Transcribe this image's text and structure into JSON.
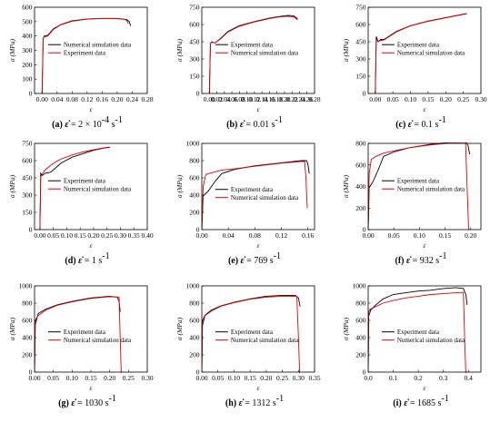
{
  "chart_data": [
    {
      "type": "line",
      "panel": "(a)",
      "strain_rate": "= 2 × 10",
      "rate_sup": "-4",
      "rate_unit": " s",
      "rate_unit_sup": "-1",
      "ylabel": "σ (MPa)",
      "xlabel": "ε",
      "xlim": [
        -0.02,
        0.28
      ],
      "ylim": [
        0,
        600
      ],
      "xticks": [
        0,
        0.04,
        0.08,
        0.12,
        0.16,
        0.2,
        0.24,
        0.28
      ],
      "xticklabels": [
        "0.00",
        "0.04",
        "0.08",
        "0.12",
        "0.16",
        "0.20",
        "0.24",
        "0.28"
      ],
      "yticks": [
        0,
        100,
        200,
        300,
        400,
        500,
        600
      ],
      "yticklabels": [
        "0",
        "100",
        "200",
        "300",
        "400",
        "500",
        "600"
      ],
      "legend_position": "center",
      "series": [
        {
          "name": "Numerical simulation data",
          "color": "#000000",
          "x": [
            0,
            0.003,
            0.006,
            0.015,
            0.03,
            0.05,
            0.08,
            0.12,
            0.16,
            0.2,
            0.225,
            0.232,
            0.236
          ],
          "y": [
            0,
            380,
            400,
            405,
            450,
            480,
            505,
            518,
            522,
            522,
            515,
            500,
            470
          ]
        },
        {
          "name": "Experiment data",
          "color": "#e00000",
          "x": [
            0,
            0.003,
            0.006,
            0.015,
            0.03,
            0.05,
            0.08,
            0.12,
            0.16,
            0.2,
            0.222,
            0.226,
            0.23
          ],
          "y": [
            0,
            385,
            395,
            400,
            445,
            478,
            503,
            517,
            522,
            521,
            514,
            505,
            485
          ]
        }
      ]
    },
    {
      "type": "line",
      "panel": "(b)",
      "strain_rate": "= 0.01",
      "rate_sup": "",
      "rate_unit": " s",
      "rate_unit_sup": "-1",
      "ylabel": "σ (MPa)",
      "xlabel": "ε",
      "xlim": [
        -0.02,
        0.28
      ],
      "ylim": [
        0,
        750
      ],
      "xticks": [
        0,
        0.02,
        0.04,
        0.06,
        0.08,
        0.1,
        0.12,
        0.14,
        0.16,
        0.18,
        0.2,
        0.22,
        0.24,
        0.26,
        0.28
      ],
      "xticklabels": [
        "0.00",
        "0.02",
        "0.04",
        "0.06",
        "0.08",
        "0.10",
        "0.12",
        "0.14",
        "0.16",
        "0.18",
        "0.20",
        "0.22",
        "0.24",
        "0.26",
        "0.28"
      ],
      "yticks": [
        0,
        150,
        300,
        450,
        600,
        750
      ],
      "yticklabels": [
        "0",
        "150",
        "300",
        "450",
        "600",
        "750"
      ],
      "legend_position": "center",
      "series": [
        {
          "name": "Experiment data",
          "color": "#000000",
          "x": [
            0,
            0.003,
            0.006,
            0.015,
            0.03,
            0.05,
            0.08,
            0.12,
            0.16,
            0.19,
            0.21,
            0.225,
            0.235
          ],
          "y": [
            0,
            430,
            450,
            440,
            480,
            540,
            590,
            625,
            655,
            672,
            680,
            675,
            650
          ]
        },
        {
          "name": "Numerical simulation data",
          "color": "#e00000",
          "x": [
            0,
            0.003,
            0.006,
            0.015,
            0.03,
            0.05,
            0.08,
            0.12,
            0.16,
            0.19,
            0.21,
            0.225,
            0.235
          ],
          "y": [
            0,
            435,
            445,
            440,
            475,
            535,
            585,
            622,
            652,
            668,
            672,
            665,
            640
          ]
        }
      ]
    },
    {
      "type": "line",
      "panel": "(c)",
      "strain_rate": "= 0.1",
      "rate_sup": "",
      "rate_unit": " s",
      "rate_unit_sup": "-1",
      "ylabel": "σ (MPa)",
      "xlabel": "ε",
      "xlim": [
        -0.02,
        0.3
      ],
      "ylim": [
        0,
        750
      ],
      "xticks": [
        0,
        0.05,
        0.1,
        0.15,
        0.2,
        0.25,
        0.3
      ],
      "xticklabels": [
        "0.00",
        "0.05",
        "0.10",
        "0.15",
        "0.20",
        "0.25",
        "0.30"
      ],
      "yticks": [
        0,
        150,
        300,
        450,
        600,
        750
      ],
      "yticklabels": [
        "0",
        "150",
        "300",
        "450",
        "600",
        "750"
      ],
      "legend_position": "center",
      "series": [
        {
          "name": "Experiment data",
          "color": "#000000",
          "x": [
            0,
            0.003,
            0.008,
            0.015,
            0.025,
            0.04,
            0.06,
            0.1,
            0.15,
            0.2,
            0.25,
            0.26
          ],
          "y": [
            0,
            495,
            450,
            470,
            470,
            500,
            540,
            590,
            630,
            660,
            690,
            695
          ]
        },
        {
          "name": "Numerical simulation data",
          "color": "#e00000",
          "x": [
            0,
            0.003,
            0.008,
            0.015,
            0.025,
            0.04,
            0.06,
            0.1,
            0.15,
            0.2,
            0.25,
            0.26
          ],
          "y": [
            0,
            460,
            455,
            460,
            465,
            495,
            535,
            588,
            628,
            658,
            688,
            693
          ]
        }
      ]
    },
    {
      "type": "line",
      "panel": "(d)",
      "strain_rate": "= 1",
      "rate_sup": "",
      "rate_unit": " s",
      "rate_unit_sup": "-1",
      "ylabel": "σ (MPa)",
      "xlabel": "ε",
      "xlim": [
        -0.02,
        0.4
      ],
      "ylim": [
        0,
        750
      ],
      "xticks": [
        0,
        0.05,
        0.1,
        0.15,
        0.2,
        0.25,
        0.3,
        0.35,
        0.4
      ],
      "xticklabels": [
        "0.00",
        "0.05",
        "0.10",
        "0.15",
        "0.20",
        "0.25",
        "0.30",
        "0.35",
        "0.40"
      ],
      "yticks": [
        0,
        150,
        300,
        450,
        600,
        750
      ],
      "yticklabels": [
        "0",
        "150",
        "300",
        "450",
        "600",
        "750"
      ],
      "legend_position": "center",
      "series": [
        {
          "name": "Experiment data",
          "color": "#000000",
          "x": [
            0,
            0.003,
            0.008,
            0.02,
            0.04,
            0.06,
            0.08,
            0.12,
            0.16,
            0.2,
            0.24,
            0.26
          ],
          "y": [
            0,
            490,
            470,
            490,
            500,
            540,
            580,
            630,
            660,
            690,
            710,
            715
          ]
        },
        {
          "name": "Numerical simulation data",
          "color": "#e00000",
          "x": [
            0,
            0.003,
            0.008,
            0.02,
            0.04,
            0.06,
            0.08,
            0.12,
            0.16,
            0.2,
            0.24,
            0.26
          ],
          "y": [
            0,
            460,
            480,
            520,
            560,
            590,
            615,
            650,
            675,
            695,
            712,
            718
          ]
        }
      ]
    },
    {
      "type": "line",
      "panel": "(e)",
      "strain_rate": "= 769",
      "rate_sup": "",
      "rate_unit": " s",
      "rate_unit_sup": "-1",
      "ylabel": "σ (MPa)",
      "xlabel": "ε",
      "xlim": [
        0,
        0.17
      ],
      "ylim": [
        0,
        1000
      ],
      "xticks": [
        0,
        0.04,
        0.08,
        0.12,
        0.16
      ],
      "xticklabels": [
        "0.00",
        "0.04",
        "0.08",
        "0.12",
        "0.16"
      ],
      "yticks": [
        0,
        200,
        400,
        600,
        800,
        1000
      ],
      "yticklabels": [
        "0",
        "200",
        "400",
        "600",
        "800",
        "1000"
      ],
      "legend_position": "bottom-center",
      "series": [
        {
          "name": "Experiment data",
          "color": "#000000",
          "x": [
            0,
            0.002,
            0.01,
            0.02,
            0.03,
            0.05,
            0.08,
            0.12,
            0.15,
            0.158,
            0.16,
            0.162
          ],
          "y": [
            0,
            390,
            450,
            560,
            650,
            700,
            740,
            775,
            800,
            800,
            760,
            650
          ]
        },
        {
          "name": "Numerical simulation data",
          "color": "#e00000",
          "x": [
            0,
            0.002,
            0.006,
            0.015,
            0.03,
            0.05,
            0.08,
            0.12,
            0.15,
            0.155,
            0.157,
            0.159
          ],
          "y": [
            0,
            500,
            640,
            660,
            690,
            705,
            735,
            770,
            790,
            790,
            600,
            250
          ]
        }
      ]
    },
    {
      "type": "line",
      "panel": "(f)",
      "strain_rate": "= 932",
      "rate_sup": "",
      "rate_unit": " s",
      "rate_unit_sup": "-1",
      "ylabel": "σ (MPa)",
      "xlabel": "ε",
      "xlim": [
        0,
        0.22
      ],
      "ylim": [
        0,
        800
      ],
      "xticks": [
        0,
        0.05,
        0.1,
        0.15,
        0.2
      ],
      "xticklabels": [
        "0.00",
        "0.05",
        "0.10",
        "0.15",
        "0.20"
      ],
      "yticks": [
        0,
        200,
        400,
        600,
        800
      ],
      "yticklabels": [
        "0",
        "200",
        "400",
        "600",
        "800"
      ],
      "legend_position": "center",
      "series": [
        {
          "name": "Experiment data",
          "color": "#000000",
          "x": [
            0,
            0.002,
            0.01,
            0.02,
            0.03,
            0.05,
            0.08,
            0.12,
            0.16,
            0.19,
            0.195,
            0.198
          ],
          "y": [
            0,
            390,
            450,
            560,
            680,
            720,
            760,
            790,
            810,
            815,
            780,
            700
          ]
        },
        {
          "name": "Numerical simulation data",
          "color": "#e00000",
          "x": [
            0,
            0.002,
            0.006,
            0.015,
            0.03,
            0.05,
            0.08,
            0.12,
            0.16,
            0.19,
            0.193,
            0.196
          ],
          "y": [
            0,
            520,
            650,
            680,
            710,
            730,
            760,
            785,
            805,
            810,
            400,
            0
          ]
        }
      ]
    },
    {
      "type": "line",
      "panel": "(g)",
      "strain_rate": "= 1030",
      "rate_sup": "",
      "rate_unit": " s",
      "rate_unit_sup": "-1",
      "ylabel": "σ (MPa)",
      "xlabel": "ε",
      "xlim": [
        0,
        0.3
      ],
      "ylim": [
        0,
        1000
      ],
      "xticks": [
        0,
        0.05,
        0.1,
        0.15,
        0.2,
        0.25,
        0.3
      ],
      "xticklabels": [
        "0.00",
        "0.05",
        "0.10",
        "0.15",
        "0.20",
        "0.25",
        "0.30"
      ],
      "yticks": [
        0,
        200,
        400,
        600,
        800,
        1000
      ],
      "yticklabels": [
        "0",
        "200",
        "400",
        "600",
        "800",
        "1000"
      ],
      "legend_position": "bottom-center",
      "series": [
        {
          "name": "Experiment data",
          "color": "#000000",
          "x": [
            0,
            0.002,
            0.01,
            0.03,
            0.06,
            0.1,
            0.15,
            0.2,
            0.22,
            0.225,
            0.228
          ],
          "y": [
            0,
            550,
            680,
            730,
            780,
            820,
            860,
            880,
            870,
            820,
            700
          ]
        },
        {
          "name": "Numerical simulation data",
          "color": "#e00000",
          "x": [
            0,
            0.002,
            0.008,
            0.03,
            0.06,
            0.1,
            0.15,
            0.2,
            0.225,
            0.228,
            0.231
          ],
          "y": [
            0,
            600,
            650,
            720,
            775,
            815,
            855,
            875,
            870,
            400,
            -50
          ]
        }
      ]
    },
    {
      "type": "line",
      "panel": "(h)",
      "strain_rate": "= 1312",
      "rate_sup": "",
      "rate_unit": " s",
      "rate_unit_sup": "-1",
      "ylabel": "σ (MPa)",
      "xlabel": "ε",
      "xlim": [
        0,
        0.35
      ],
      "ylim": [
        0,
        1000
      ],
      "xticks": [
        0,
        0.05,
        0.1,
        0.15,
        0.2,
        0.25,
        0.3,
        0.35
      ],
      "xticklabels": [
        "0.00",
        "0.05",
        "0.10",
        "0.15",
        "0.20",
        "0.25",
        "0.30",
        "0.35"
      ],
      "yticks": [
        0,
        200,
        400,
        600,
        800,
        1000
      ],
      "yticklabels": [
        "0",
        "200",
        "400",
        "600",
        "800",
        "1000"
      ],
      "legend_position": "bottom-center",
      "series": [
        {
          "name": "Experiment data",
          "color": "#000000",
          "x": [
            0,
            0.002,
            0.01,
            0.03,
            0.06,
            0.1,
            0.15,
            0.2,
            0.25,
            0.29,
            0.3,
            0.305
          ],
          "y": [
            0,
            540,
            660,
            720,
            770,
            810,
            850,
            880,
            890,
            890,
            860,
            760
          ]
        },
        {
          "name": "Numerical simulation data",
          "color": "#e00000",
          "x": [
            0,
            0.002,
            0.008,
            0.03,
            0.06,
            0.1,
            0.15,
            0.2,
            0.25,
            0.295,
            0.3,
            0.304
          ],
          "y": [
            0,
            600,
            650,
            710,
            765,
            805,
            845,
            870,
            880,
            880,
            400,
            -30
          ]
        }
      ]
    },
    {
      "type": "line",
      "panel": "(i)",
      "strain_rate": "= 1685",
      "rate_sup": "",
      "rate_unit": " s",
      "rate_unit_sup": "-1",
      "ylabel": "σ (MPa)",
      "xlabel": "ε",
      "xlim": [
        0,
        0.45
      ],
      "ylim": [
        0,
        1000
      ],
      "xticks": [
        0,
        0.1,
        0.2,
        0.3,
        0.4
      ],
      "xticklabels": [
        "0.0",
        "0.1",
        "0.2",
        "0.3",
        "0.4"
      ],
      "yticks": [
        0,
        200,
        400,
        600,
        800,
        1000
      ],
      "yticklabels": [
        "0",
        "200",
        "400",
        "600",
        "800",
        "1000"
      ],
      "legend_position": "bottom-center",
      "series": [
        {
          "name": "Experiment data",
          "color": "#000000",
          "x": [
            0,
            0.002,
            0.01,
            0.03,
            0.06,
            0.1,
            0.15,
            0.2,
            0.25,
            0.3,
            0.35,
            0.38,
            0.39,
            0.395
          ],
          "y": [
            0,
            650,
            720,
            780,
            850,
            900,
            920,
            940,
            950,
            970,
            980,
            970,
            900,
            780
          ]
        },
        {
          "name": "Numerical simulation data",
          "color": "#e00000",
          "x": [
            0,
            0.002,
            0.008,
            0.03,
            0.06,
            0.1,
            0.15,
            0.2,
            0.25,
            0.3,
            0.35,
            0.38,
            0.385,
            0.39
          ],
          "y": [
            0,
            700,
            730,
            760,
            800,
            830,
            860,
            880,
            900,
            910,
            920,
            925,
            400,
            -50
          ]
        }
      ]
    }
  ]
}
